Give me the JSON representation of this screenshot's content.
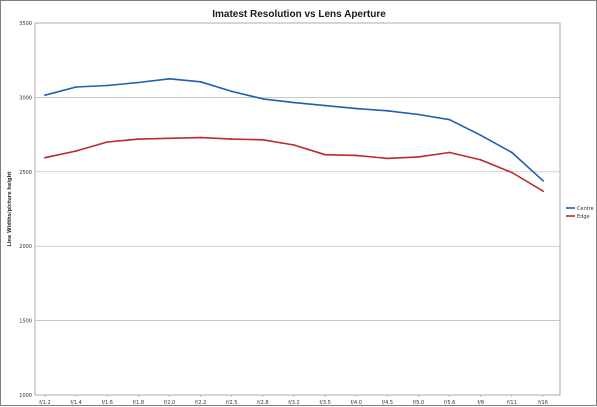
{
  "chart_data": {
    "type": "line",
    "title": "Imatest Resolution vs Lens Aperture",
    "xlabel": "",
    "ylabel": "Line Widths/picture height",
    "ylim": [
      1000,
      3500
    ],
    "yticks": [
      1000,
      1500,
      2000,
      2500,
      3000,
      3500
    ],
    "grid": true,
    "legend_position": "right",
    "categories": [
      "f/1.2",
      "f/1.4",
      "f/1.6",
      "f/1.8",
      "f/2.0",
      "f/2.2",
      "f/2.5",
      "f/2.8",
      "f/3.2",
      "f/3.5",
      "f/4.0",
      "f/4.5",
      "f/5.0",
      "f/5.6",
      "f/8",
      "f/11",
      "f/16"
    ],
    "series": [
      {
        "name": "Centre",
        "color": "#1f5fb4",
        "values": [
          3015,
          3070,
          3080,
          3100,
          3125,
          3105,
          3040,
          2990,
          2965,
          2945,
          2925,
          2910,
          2885,
          2850,
          2745,
          2630,
          2440
        ]
      },
      {
        "name": "Edge",
        "color": "#c0282d",
        "values": [
          2595,
          2640,
          2700,
          2720,
          2725,
          2730,
          2720,
          2715,
          2680,
          2615,
          2610,
          2590,
          2600,
          2630,
          2580,
          2495,
          2370
        ]
      }
    ]
  }
}
